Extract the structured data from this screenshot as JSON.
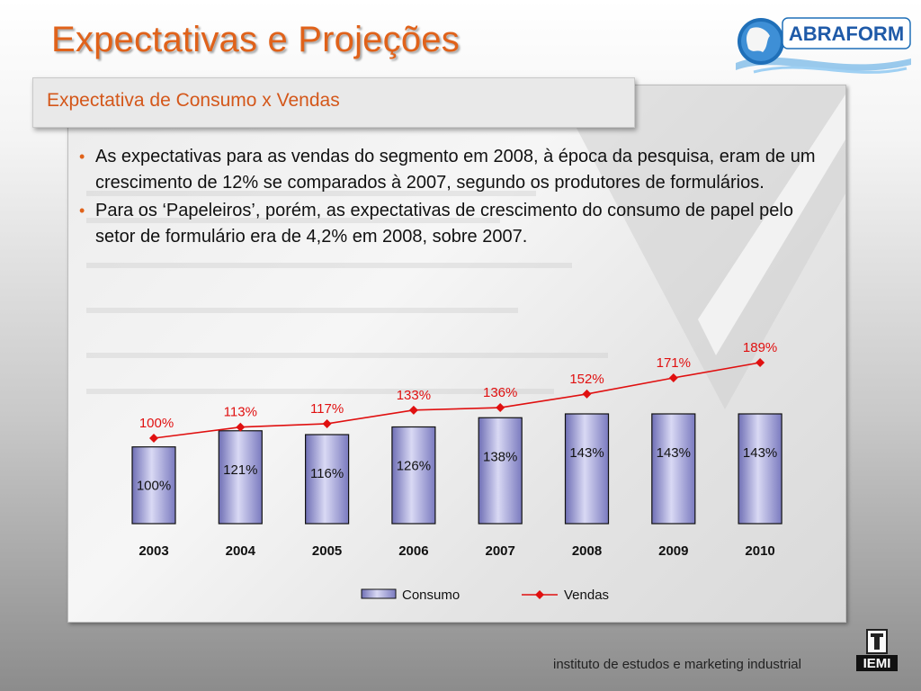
{
  "header": {
    "title": "Expectativas e Projeções"
  },
  "logo": {
    "text": "ABRAFORM"
  },
  "subtitle": "Expectativa de Consumo x Vendas",
  "bullets": [
    "As expectativas para as vendas do segmento em 2008, à época da pesquisa, eram de um crescimento de 12% se comparados à 2007, segundo os produtores de formulários.",
    "Para os ‘Papeleiros’, porém, as expectativas de crescimento do consumo de papel pelo setor de formulário era de 4,2% em 2008, sobre 2007."
  ],
  "footer": {
    "text": "instituto de estudos e marketing industrial",
    "logo_text": "IEMI"
  },
  "colors": {
    "title": "#e0621a",
    "bar": "#8888cc",
    "line": "#e01010"
  },
  "chart_data": {
    "type": "bar",
    "categories": [
      "2003",
      "2004",
      "2005",
      "2006",
      "2007",
      "2008",
      "2009",
      "2010"
    ],
    "series": [
      {
        "name": "Consumo",
        "type": "bar",
        "values": [
          100,
          121,
          116,
          126,
          138,
          143,
          143,
          143
        ],
        "labels": [
          "100%",
          "121%",
          "116%",
          "126%",
          "138%",
          "143%",
          "143%",
          "143%"
        ]
      },
      {
        "name": "Vendas",
        "type": "line",
        "values": [
          100,
          113,
          117,
          133,
          136,
          152,
          171,
          189
        ],
        "labels": [
          "100%",
          "113%",
          "117%",
          "133%",
          "136%",
          "152%",
          "171%",
          "189%"
        ]
      }
    ],
    "legend": "bottom",
    "grid": false
  }
}
